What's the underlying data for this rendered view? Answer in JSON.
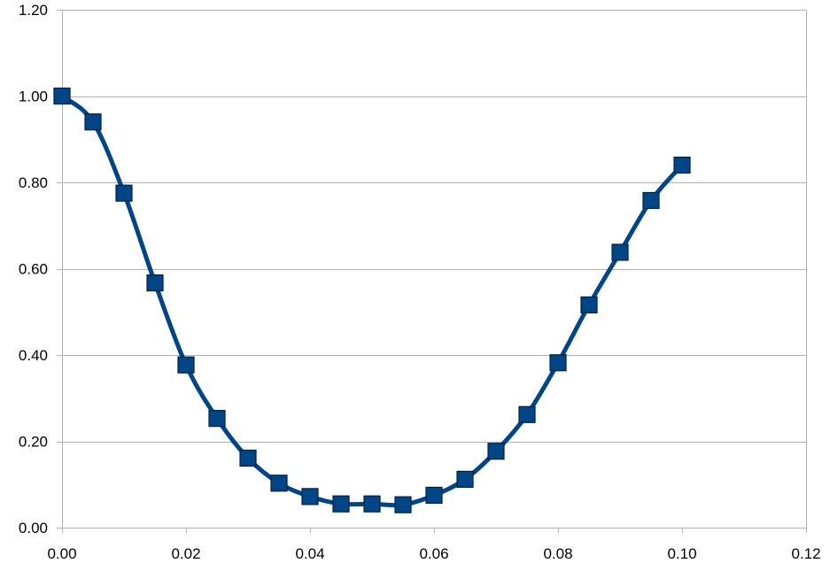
{
  "chart_data": {
    "type": "scatter",
    "title": "",
    "xlabel": "",
    "ylabel": "",
    "xlim": [
      0,
      0.12
    ],
    "ylim": [
      0,
      1.2
    ],
    "x_ticks": [
      "0.00",
      "0.02",
      "0.04",
      "0.06",
      "0.08",
      "0.10",
      "0.12"
    ],
    "y_ticks": [
      "0.00",
      "0.20",
      "0.40",
      "0.60",
      "0.80",
      "1.00",
      "1.20"
    ],
    "grid": "horizontal",
    "legend": "none",
    "series": [
      {
        "color": "#004586",
        "marker": "square",
        "line": "smooth",
        "x": [
          0.0,
          0.005,
          0.01,
          0.015,
          0.02,
          0.025,
          0.03,
          0.035,
          0.04,
          0.045,
          0.05,
          0.055,
          0.06,
          0.065,
          0.07,
          0.075,
          0.08,
          0.085,
          0.09,
          0.095,
          0.1
        ],
        "y": [
          1.0,
          0.94,
          0.775,
          0.567,
          0.377,
          0.253,
          0.161,
          0.103,
          0.072,
          0.055,
          0.055,
          0.053,
          0.075,
          0.112,
          0.177,
          0.262,
          0.382,
          0.516,
          0.638,
          0.758,
          0.84
        ]
      }
    ]
  }
}
